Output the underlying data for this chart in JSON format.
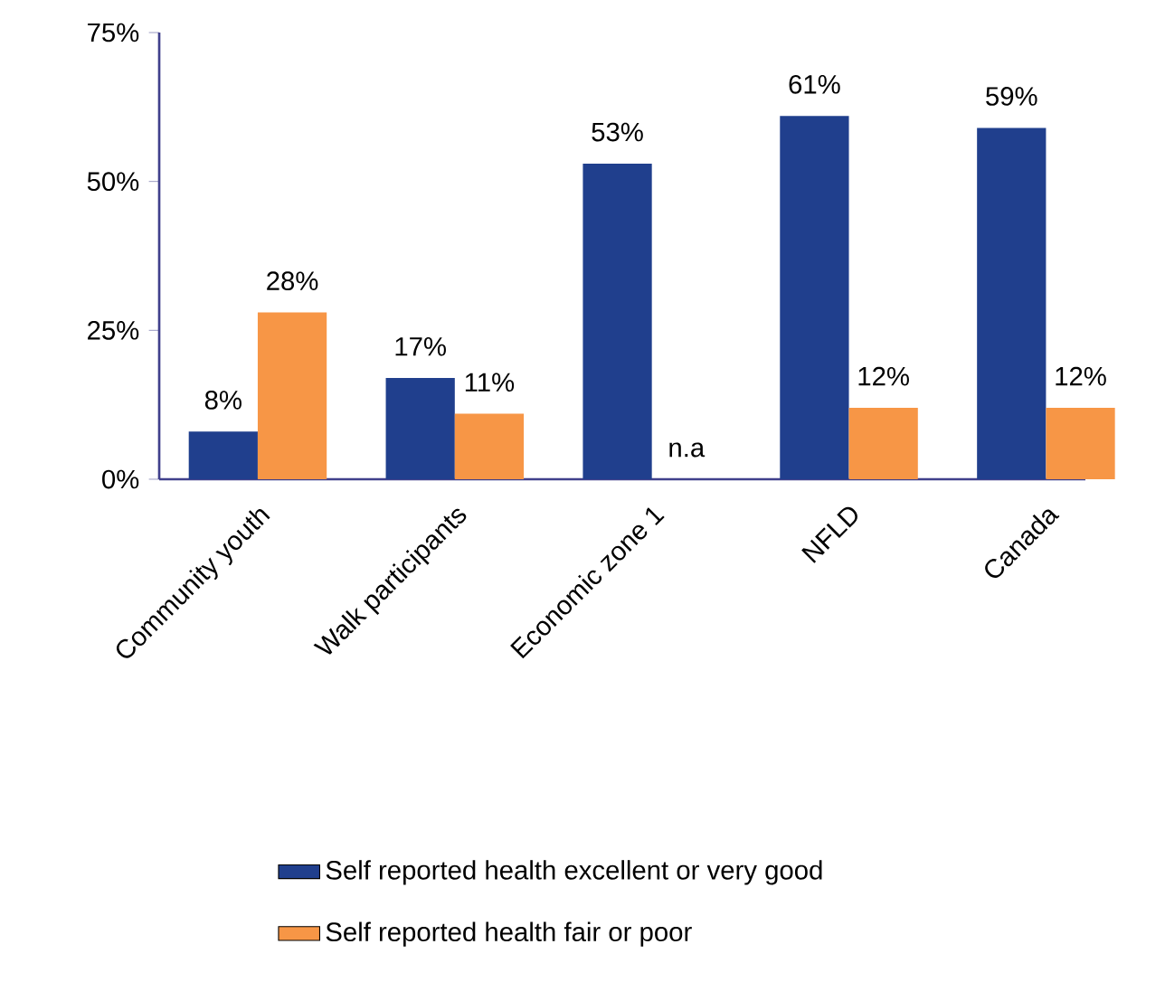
{
  "chart_data": {
    "type": "bar",
    "categories": [
      "Community youth",
      "Walk participants",
      "Economic zone 1",
      "NFLD",
      "Canada"
    ],
    "series": [
      {
        "name": "Self reported health excellent or very good",
        "color": "#203f8d",
        "values": [
          8,
          17,
          53,
          61,
          59
        ],
        "value_labels": [
          "8%",
          "17%",
          "53%",
          "61%",
          "59%"
        ]
      },
      {
        "name": "Self reported health fair or poor",
        "color": "#f79646",
        "values": [
          28,
          11,
          null,
          12,
          12
        ],
        "value_labels": [
          "28%",
          "11%",
          "n.a",
          "12%",
          "12%"
        ]
      }
    ],
    "ylim": [
      0,
      75
    ],
    "yticks": [
      {
        "value": 0,
        "label": "0%"
      },
      {
        "value": 25,
        "label": "25%"
      },
      {
        "value": 50,
        "label": "50%"
      },
      {
        "value": 75,
        "label": "75%"
      }
    ],
    "legend": "bottom"
  }
}
